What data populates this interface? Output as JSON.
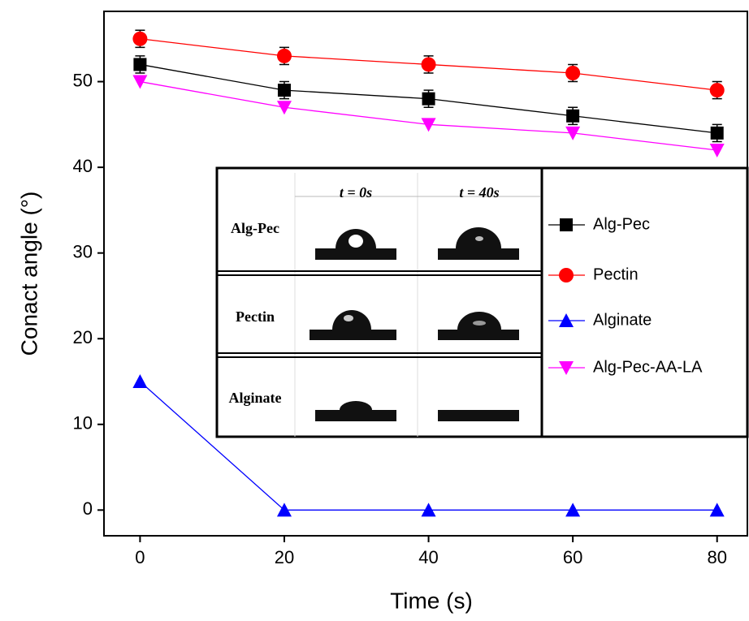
{
  "chart_data": {
    "type": "line",
    "x_label": "Time (s)",
    "y_label": "Conact angle (°)",
    "x": [
      0,
      20,
      40,
      60,
      80
    ],
    "xlim": [
      -5,
      84.2
    ],
    "ylim": [
      -3,
      58.2
    ],
    "xticks": [
      0,
      20,
      40,
      60,
      80
    ],
    "yticks": [
      0,
      10,
      20,
      30,
      40,
      50
    ],
    "series": [
      {
        "name": "Alg-Pec",
        "color": "#000000",
        "marker": "square",
        "values": [
          52,
          49,
          48,
          46,
          44
        ],
        "errors": [
          1,
          1,
          1,
          1,
          1
        ]
      },
      {
        "name": "Pectin",
        "color": "#ff0000",
        "marker": "circle",
        "values": [
          55,
          53,
          52,
          51,
          49
        ],
        "errors": [
          1,
          1,
          1,
          1,
          1
        ]
      },
      {
        "name": "Alginate",
        "color": "#0000ff",
        "marker": "triangle-up",
        "values": [
          15,
          0,
          0,
          0,
          0
        ]
      },
      {
        "name": "Alg-Pec-AA-LA",
        "color": "#ff00ff",
        "marker": "triangle-down",
        "values": [
          50,
          47,
          45,
          44,
          42
        ]
      }
    ],
    "inset": {
      "columns": [
        "t = 0s",
        "t = 40s"
      ],
      "rows": [
        "Alg-Pec",
        "Pectin",
        "Alginate"
      ]
    }
  }
}
